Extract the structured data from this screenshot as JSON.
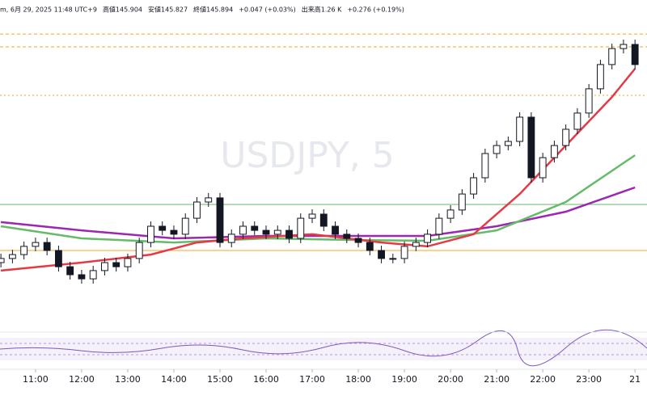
{
  "chart_data": {
    "type": "candlestick",
    "header": [
      "m, 6月 29, 2025 11:48 UTC+9",
      "高値145.904",
      "安値145.827",
      "終値145.894",
      "+0.047 (+0.03%)",
      "出来高1.26 K",
      "+0.276 (+0.19%)"
    ],
    "watermark": "USDJPY, 5",
    "x": [
      10.25,
      10.5,
      10.75,
      11,
      11.25,
      11.5,
      11.75,
      12,
      12.25,
      12.5,
      12.75,
      13,
      13.25,
      13.5,
      13.75,
      14,
      14.25,
      14.5,
      14.75,
      15,
      15.25,
      15.5,
      15.75,
      16,
      16.25,
      16.5,
      16.75,
      17,
      17.25,
      17.5,
      17.75,
      18,
      18.25,
      18.5,
      18.75,
      19,
      19.25,
      19.5,
      19.75,
      20,
      20.25,
      20.5,
      20.75,
      21,
      21.25,
      21.5,
      21.75,
      22,
      22.25,
      22.5,
      22.75,
      23,
      23.25,
      23.5,
      23.75,
      24
    ],
    "open": [
      145.3,
      145.317,
      145.333,
      145.367,
      145.383,
      145.35,
      145.283,
      145.25,
      145.233,
      145.267,
      145.3,
      145.283,
      145.317,
      145.383,
      145.45,
      145.433,
      145.417,
      145.483,
      145.55,
      145.567,
      145.383,
      145.417,
      145.45,
      145.433,
      145.417,
      145.433,
      145.4,
      145.483,
      145.5,
      145.45,
      145.417,
      145.4,
      145.383,
      145.35,
      145.317,
      145.317,
      145.367,
      145.383,
      145.417,
      145.483,
      145.517,
      145.583,
      145.65,
      145.75,
      145.783,
      145.8,
      145.9,
      145.65,
      145.733,
      145.783,
      145.85,
      145.917,
      146.017,
      146.117,
      146.183,
      146.2
    ],
    "high": [
      145.337,
      145.353,
      145.387,
      145.403,
      145.403,
      145.37,
      145.303,
      145.27,
      145.287,
      145.32,
      145.32,
      145.337,
      145.403,
      145.47,
      145.47,
      145.453,
      145.503,
      145.57,
      145.587,
      145.587,
      145.437,
      145.47,
      145.47,
      145.453,
      145.453,
      145.453,
      145.503,
      145.52,
      145.52,
      145.47,
      145.437,
      145.42,
      145.403,
      145.37,
      145.337,
      145.387,
      145.403,
      145.437,
      145.503,
      145.537,
      145.603,
      145.67,
      145.77,
      145.803,
      145.82,
      145.92,
      145.92,
      145.753,
      145.803,
      145.87,
      145.937,
      146.037,
      146.137,
      146.203,
      146.22,
      146.22
    ],
    "low": [
      145.28,
      145.297,
      145.313,
      145.347,
      145.33,
      145.263,
      145.23,
      145.213,
      145.213,
      145.247,
      145.263,
      145.263,
      145.297,
      145.363,
      145.413,
      145.397,
      145.397,
      145.463,
      145.53,
      145.363,
      145.363,
      145.397,
      145.413,
      145.397,
      145.397,
      145.38,
      145.38,
      145.463,
      145.43,
      145.397,
      145.38,
      145.363,
      145.33,
      145.297,
      145.297,
      145.297,
      145.347,
      145.363,
      145.397,
      145.463,
      145.497,
      145.563,
      145.63,
      145.73,
      145.763,
      145.78,
      145.63,
      145.63,
      145.713,
      145.763,
      145.83,
      145.897,
      145.997,
      146.097,
      146.163,
      146.097
    ],
    "close": [
      145.317,
      145.333,
      145.367,
      145.383,
      145.35,
      145.283,
      145.25,
      145.233,
      145.267,
      145.3,
      145.283,
      145.317,
      145.383,
      145.45,
      145.433,
      145.417,
      145.483,
      145.55,
      145.567,
      145.383,
      145.417,
      145.45,
      145.433,
      145.417,
      145.433,
      145.4,
      145.483,
      145.5,
      145.45,
      145.417,
      145.4,
      145.383,
      145.35,
      145.317,
      145.317,
      145.367,
      145.383,
      145.417,
      145.483,
      145.517,
      145.583,
      145.65,
      145.75,
      145.783,
      145.8,
      145.9,
      145.65,
      145.733,
      145.783,
      145.85,
      145.917,
      146.017,
      146.117,
      146.183,
      146.2,
      146.117
    ],
    "up_color": "#ffffff",
    "down_color": "#131722",
    "lines": [
      {
        "color": "#9c27b0",
        "x": [
          10.25,
          12,
          14,
          16,
          18,
          19.5,
          21,
          22.5,
          24
        ],
        "values": [
          145.467,
          145.433,
          145.4,
          145.41,
          145.41,
          145.41,
          145.45,
          145.51,
          145.61
        ]
      },
      {
        "color": "#66bb6a",
        "x": [
          10.25,
          12,
          14,
          16,
          18,
          19.5,
          21,
          22.5,
          24
        ],
        "values": [
          145.45,
          145.4,
          145.383,
          145.4,
          145.393,
          145.39,
          145.433,
          145.55,
          145.743
        ]
      },
      {
        "color": "#e53945",
        "x": [
          10.25,
          12,
          13.5,
          14.5,
          15.5,
          17,
          18.5,
          19.5,
          20.5,
          21.5,
          22.5,
          23.5,
          24
        ],
        "values": [
          145.267,
          145.3,
          145.333,
          145.383,
          145.4,
          145.417,
          145.383,
          145.367,
          145.417,
          145.583,
          145.783,
          145.983,
          146.1
        ]
      }
    ],
    "hlines": [
      {
        "value": 146.243,
        "color": "#f5a623",
        "style": "dashed"
      },
      {
        "value": 146.19,
        "color": "#f5a623",
        "style": "dashed"
      },
      {
        "value": 145.99,
        "color": "#f5a623",
        "style": "dotted"
      },
      {
        "value": 145.35,
        "color": "#f5a623",
        "style": "solid"
      },
      {
        "value": 145.54,
        "color": "#66bb6a",
        "style": "solid"
      }
    ],
    "xlim": [
      10.23,
      24.26
    ],
    "ylim": [
      145.05,
      146.35
    ],
    "xticks": [
      {
        "value": 11,
        "label": "11:00"
      },
      {
        "value": 12,
        "label": "12:00"
      },
      {
        "value": 13,
        "label": "13:00"
      },
      {
        "value": 14,
        "label": "14:00"
      },
      {
        "value": 15,
        "label": "15:00"
      },
      {
        "value": 16,
        "label": "16:00"
      },
      {
        "value": 17,
        "label": "17:00"
      },
      {
        "value": 18,
        "label": "18:00"
      },
      {
        "value": 19,
        "label": "19:00"
      },
      {
        "value": 20,
        "label": "20:00"
      },
      {
        "value": 21,
        "label": "21:00"
      },
      {
        "value": 22,
        "label": "22:00"
      },
      {
        "value": 23,
        "label": "23:00"
      },
      {
        "value": 24,
        "label": "21"
      }
    ]
  }
}
